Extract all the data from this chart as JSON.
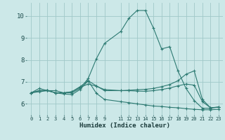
{
  "xlabel": "Humidex (Indice chaleur)",
  "bg_color": "#cce8e8",
  "line_color": "#2d7a72",
  "grid_color": "#a0c8c8",
  "xlim": [
    -0.5,
    23.5
  ],
  "ylim": [
    5.5,
    10.6
  ],
  "yticks": [
    6,
    7,
    8,
    9,
    10
  ],
  "series": [
    {
      "x": [
        0,
        1,
        2,
        3,
        4,
        5,
        6,
        7,
        8,
        9,
        11,
        12,
        13,
        14,
        15,
        16,
        17,
        18,
        19,
        20,
        21,
        22,
        23
      ],
      "y": [
        6.5,
        6.7,
        6.6,
        6.6,
        6.5,
        6.5,
        6.7,
        7.15,
        8.05,
        8.75,
        9.3,
        9.9,
        10.25,
        10.25,
        9.45,
        8.5,
        8.6,
        7.5,
        6.7,
        6.15,
        5.8,
        5.8,
        5.85
      ]
    },
    {
      "x": [
        0,
        1,
        2,
        3,
        4,
        5,
        6,
        7,
        8,
        9,
        11,
        12,
        13,
        14,
        15,
        16,
        17,
        18,
        19,
        20,
        21,
        22,
        23
      ],
      "y": [
        6.5,
        6.6,
        6.6,
        6.5,
        6.5,
        6.55,
        6.75,
        6.9,
        6.8,
        6.65,
        6.6,
        6.6,
        6.58,
        6.57,
        6.6,
        6.65,
        6.72,
        6.82,
        6.9,
        6.85,
        6.1,
        5.82,
        5.85
      ]
    },
    {
      "x": [
        0,
        1,
        2,
        3,
        4,
        5,
        6,
        7,
        8,
        9,
        11,
        12,
        13,
        14,
        15,
        16,
        17,
        18,
        19,
        20,
        21,
        22,
        23
      ],
      "y": [
        6.5,
        6.6,
        6.62,
        6.5,
        6.5,
        6.55,
        6.78,
        7.05,
        6.82,
        6.6,
        6.6,
        6.62,
        6.64,
        6.66,
        6.7,
        6.78,
        6.88,
        7.05,
        7.35,
        7.5,
        6.2,
        5.82,
        5.85
      ]
    },
    {
      "x": [
        0,
        1,
        2,
        3,
        4,
        5,
        6,
        7,
        8,
        9,
        11,
        12,
        13,
        14,
        15,
        16,
        17,
        18,
        19,
        20,
        21,
        22,
        23
      ],
      "y": [
        6.5,
        6.55,
        6.6,
        6.5,
        6.45,
        6.42,
        6.65,
        7.05,
        6.48,
        6.2,
        6.1,
        6.05,
        6.0,
        5.95,
        5.9,
        5.88,
        5.84,
        5.82,
        5.78,
        5.75,
        5.73,
        5.73,
        5.75
      ]
    }
  ]
}
